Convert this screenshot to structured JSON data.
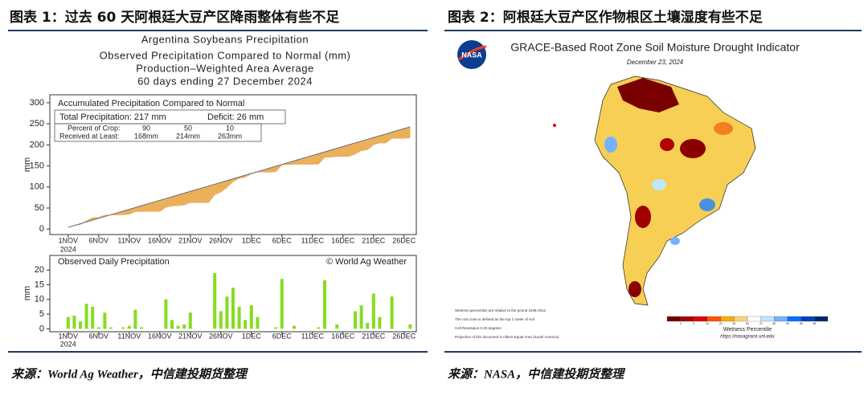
{
  "figures": [
    {
      "title": "图表 1：过去 60 天阿根廷大豆产区降雨整体有些不足",
      "source": "来源：World Ag Weather，中信建投期货整理"
    },
    {
      "title": "图表 2：阿根廷大豆产区作物根区土壤湿度有些不足",
      "source": "来源：NASA，中信建投期货整理"
    }
  ],
  "chart_data": [
    {
      "type": "area",
      "title": "Argentina Soybeans Precipitation",
      "subtitle": [
        "Observed Precipitation Compared to Normal (mm)",
        "Production–Weighted Area Average",
        "60 days ending 27 December 2024"
      ],
      "panel_title": "Accumulated Precipitation Compared to Normal",
      "total_label": "Total Precipitation: 217 mm",
      "deficit_label": "Deficit: 26 mm",
      "crop_table": {
        "rows": [
          [
            "Percent of Crop:",
            "90",
            "50",
            "10"
          ],
          [
            "Received at Least:",
            "168mm",
            "214mm",
            "263mm"
          ]
        ]
      },
      "ylabel": "mm",
      "x": [
        "2024-11-01",
        "2024-11-02",
        "2024-11-03",
        "2024-11-04",
        "2024-11-05",
        "2024-11-06",
        "2024-11-07",
        "2024-11-08",
        "2024-11-09",
        "2024-11-10",
        "2024-11-11",
        "2024-11-12",
        "2024-11-13",
        "2024-11-14",
        "2024-11-15",
        "2024-11-16",
        "2024-11-17",
        "2024-11-18",
        "2024-11-19",
        "2024-11-20",
        "2024-11-21",
        "2024-11-22",
        "2024-11-23",
        "2024-11-24",
        "2024-11-25",
        "2024-11-26",
        "2024-11-27",
        "2024-11-28",
        "2024-11-29",
        "2024-11-30",
        "2024-12-01",
        "2024-12-02",
        "2024-12-03",
        "2024-12-04",
        "2024-12-05",
        "2024-12-06",
        "2024-12-07",
        "2024-12-08",
        "2024-12-09",
        "2024-12-10",
        "2024-12-11",
        "2024-12-12",
        "2024-12-13",
        "2024-12-14",
        "2024-12-15",
        "2024-12-16",
        "2024-12-17",
        "2024-12-18",
        "2024-12-19",
        "2024-12-20",
        "2024-12-21",
        "2024-12-22",
        "2024-12-23",
        "2024-12-24",
        "2024-12-25",
        "2024-12-26",
        "2024-12-27"
      ],
      "series": [
        {
          "color": "#eab05a",
          "values": [
            4,
            8.5,
            11,
            19.5,
            27,
            27.5,
            33,
            33.5,
            33.5,
            34,
            35,
            41.5,
            42,
            42,
            42,
            42,
            52,
            55,
            56,
            57.5,
            63,
            63,
            63,
            63,
            82,
            88,
            99,
            113,
            120.5,
            123.5,
            131.5,
            135.5,
            135.5,
            135.5,
            136,
            153,
            153,
            154,
            154,
            154,
            154,
            154.5,
            171,
            171,
            172.5,
            172.5,
            172.5,
            178.5,
            186.5,
            188.5,
            200.5,
            204.5,
            204.5,
            215.5,
            215.5,
            215.5,
            217
          ]
        },
        {
          "color": "#6b6b78",
          "values": [
            4.3,
            8.5,
            12.8,
            17.1,
            21.3,
            25.6,
            29.8,
            34.1,
            38.4,
            42.6,
            46.9,
            51.2,
            55.4,
            59.7,
            63.9,
            68.2,
            72.5,
            76.7,
            81.0,
            85.3,
            89.5,
            93.8,
            98.0,
            102.3,
            106.6,
            110.8,
            115.1,
            119.4,
            123.6,
            127.9,
            132.2,
            136.4,
            140.7,
            144.9,
            149.2,
            153.5,
            157.7,
            162.0,
            166.3,
            170.5,
            174.8,
            179.0,
            183.3,
            187.6,
            191.8,
            196.1,
            200.4,
            204.6,
            208.9,
            213.2,
            217.4,
            221.7,
            225.9,
            230.2,
            234.5,
            238.7,
            243.0
          ]
        }
      ],
      "xlim": [
        "2024-10-29",
        "2024-12-28"
      ],
      "xticks": [
        {
          "value": "2024-11-01",
          "label": "1NOV"
        },
        {
          "value": "2024-11-06",
          "label": "6NOV"
        },
        {
          "value": "2024-11-11",
          "label": "11NOV"
        },
        {
          "value": "2024-11-16",
          "label": "16NOV"
        },
        {
          "value": "2024-11-21",
          "label": "21NOV"
        },
        {
          "value": "2024-11-26",
          "label": "26NOV"
        },
        {
          "value": "2024-12-01",
          "label": "1DEC"
        },
        {
          "value": "2024-12-06",
          "label": "6DEC"
        },
        {
          "value": "2024-12-11",
          "label": "11DEC"
        },
        {
          "value": "2024-12-16",
          "label": "16DEC"
        },
        {
          "value": "2024-12-21",
          "label": "21DEC"
        },
        {
          "value": "2024-12-26",
          "label": "26DEC"
        }
      ],
      "x_year_label": "2024",
      "ylim": [
        -13,
        319
      ],
      "yticks": [
        0,
        50,
        100,
        150,
        200,
        250,
        300
      ]
    },
    {
      "type": "bar",
      "title": "Observed Daily Precipitation",
      "credit": "© World Ag Weather",
      "ylabel": "mm",
      "x": [
        "2024-11-01",
        "2024-11-02",
        "2024-11-03",
        "2024-11-04",
        "2024-11-05",
        "2024-11-06",
        "2024-11-07",
        "2024-11-08",
        "2024-11-09",
        "2024-11-10",
        "2024-11-11",
        "2024-11-12",
        "2024-11-13",
        "2024-11-14",
        "2024-11-15",
        "2024-11-16",
        "2024-11-17",
        "2024-11-18",
        "2024-11-19",
        "2024-11-20",
        "2024-11-21",
        "2024-11-22",
        "2024-11-23",
        "2024-11-24",
        "2024-11-25",
        "2024-11-26",
        "2024-11-27",
        "2024-11-28",
        "2024-11-29",
        "2024-11-30",
        "2024-12-01",
        "2024-12-02",
        "2024-12-03",
        "2024-12-04",
        "2024-12-05",
        "2024-12-06",
        "2024-12-07",
        "2024-12-08",
        "2024-12-09",
        "2024-12-10",
        "2024-12-11",
        "2024-12-12",
        "2024-12-13",
        "2024-12-14",
        "2024-12-15",
        "2024-12-16",
        "2024-12-17",
        "2024-12-18",
        "2024-12-19",
        "2024-12-20",
        "2024-12-21",
        "2024-12-22",
        "2024-12-23",
        "2024-12-24",
        "2024-12-25",
        "2024-12-26",
        "2024-12-27"
      ],
      "values": [
        4,
        4.5,
        2.5,
        8.5,
        7.5,
        0.5,
        5.5,
        0.5,
        0,
        0.5,
        1,
        6.5,
        0.5,
        0,
        0,
        0,
        10,
        3,
        1,
        1.5,
        5.5,
        0,
        0,
        0,
        19,
        6,
        11,
        14,
        7.5,
        3,
        8,
        4,
        0,
        0,
        0.5,
        17,
        0,
        1,
        0,
        0,
        0,
        0.5,
        16.5,
        0,
        1.5,
        0,
        0,
        6,
        8,
        2,
        12,
        4,
        0,
        11,
        0,
        0,
        1.5
      ],
      "color": "#86dc1e",
      "xlim": [
        "2024-10-29",
        "2024-12-28"
      ],
      "xticks": [
        {
          "value": "2024-11-01",
          "label": "1NOV"
        },
        {
          "value": "2024-11-06",
          "label": "6NOV"
        },
        {
          "value": "2024-11-11",
          "label": "11NOV"
        },
        {
          "value": "2024-11-16",
          "label": "16NOV"
        },
        {
          "value": "2024-11-21",
          "label": "21NOV"
        },
        {
          "value": "2024-11-26",
          "label": "26NOV"
        },
        {
          "value": "2024-12-01",
          "label": "1DEC"
        },
        {
          "value": "2024-12-06",
          "label": "6DEC"
        },
        {
          "value": "2024-12-11",
          "label": "11DEC"
        },
        {
          "value": "2024-12-16",
          "label": "16DEC"
        },
        {
          "value": "2024-12-21",
          "label": "21DEC"
        },
        {
          "value": "2024-12-26",
          "label": "26DEC"
        }
      ],
      "x_year_label": "2024",
      "ylim": [
        -1,
        25
      ],
      "yticks": [
        0,
        5,
        10,
        15,
        20
      ]
    }
  ],
  "map_figure": {
    "logo": "NASA",
    "title": "GRACE-Based Root Zone Soil Moisture Drought Indicator",
    "date": "December 23, 2024",
    "notes": [
      "Wetness percentiles are relative to the period 1948-2012",
      "The root zone is defined as the top 1 meter of soil",
      "Cell Resolution 0.25 degrees",
      "Projection of this document is Albers Equal Area (South America)"
    ],
    "colorbar": {
      "label": "Wetness Percentile",
      "ticks": [
        2,
        5,
        10,
        20,
        30,
        50,
        70,
        80,
        90,
        95,
        98
      ],
      "colors": [
        "#730000",
        "#a80000",
        "#e60000",
        "#ff5500",
        "#ffaa00",
        "#ffd37f",
        "#ffffff",
        "#bee8ff",
        "#73b2ff",
        "#0070ff",
        "#0040c0",
        "#002673"
      ]
    },
    "url": "https://nasagrace.unl.edu"
  }
}
